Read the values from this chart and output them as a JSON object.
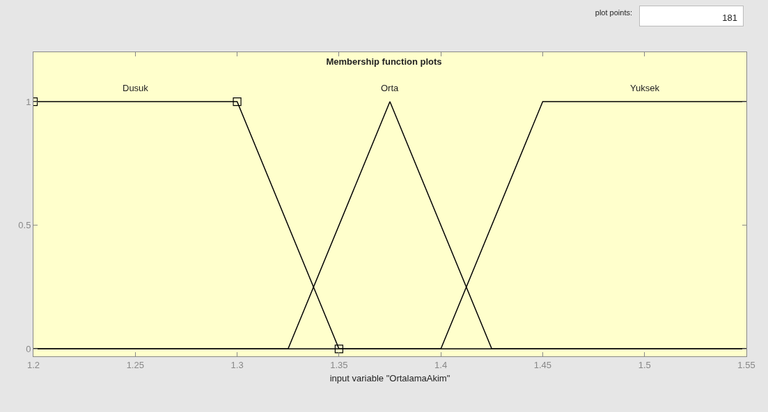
{
  "chart_data": {
    "type": "line",
    "title": "Membership function plots",
    "xlabel": "input variable \"OrtalamaAkim\"",
    "xlim": [
      1.2,
      1.55
    ],
    "xticks": [
      1.2,
      1.25,
      1.3,
      1.35,
      1.4,
      1.45,
      1.5,
      1.55
    ],
    "ylim": [
      -0.03,
      1.2
    ],
    "yticks": [
      0,
      0.5,
      1
    ],
    "grid": false,
    "legend": false,
    "line_style": "solid",
    "annotations": [
      "plot points:",
      "181"
    ],
    "series": [
      {
        "name": "Dusuk",
        "color": "#000000",
        "x": [
          1.2,
          1.3,
          1.35,
          1.55
        ],
        "values": [
          1,
          1,
          0,
          0
        ]
      },
      {
        "name": "Orta",
        "color": "#000000",
        "x": [
          1.2,
          1.325,
          1.375,
          1.425,
          1.55
        ],
        "values": [
          0,
          0,
          1,
          0,
          0
        ]
      },
      {
        "name": "Yuksek",
        "color": "#000000",
        "x": [
          1.2,
          1.4,
          1.45,
          1.55
        ],
        "values": [
          0,
          0,
          1,
          1
        ]
      },
      {
        "type": "scatter",
        "marker": "square",
        "color": "#000000",
        "x": [
          1.2,
          1.3,
          1.35
        ],
        "values": [
          1,
          1,
          0
        ]
      }
    ]
  }
}
